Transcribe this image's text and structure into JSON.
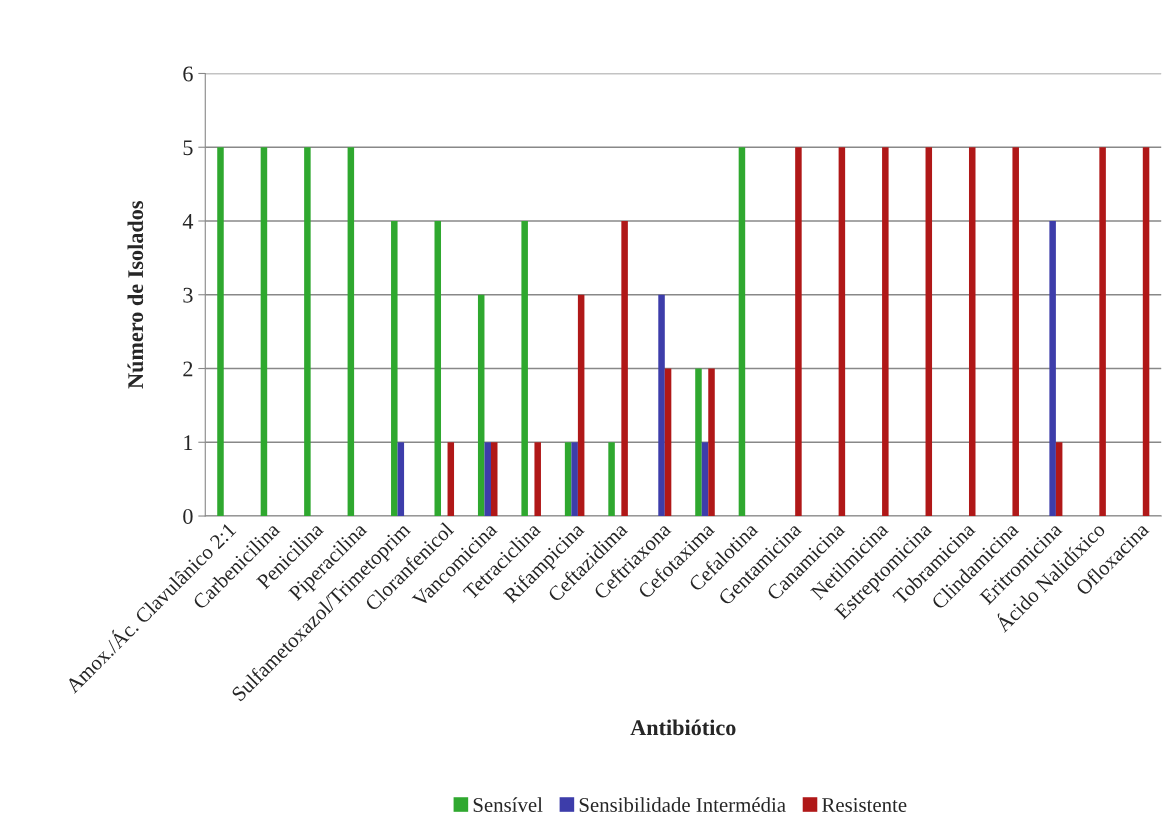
{
  "chart_data": {
    "type": "bar",
    "xlabel": "Antibiótico",
    "ylabel": "Número de Isolados",
    "categories": [
      "Amox./Ác. Clavulânico 2:1",
      "Carbenicilina",
      "Penicilina",
      "Piperacilina",
      "Sulfametoxazol/Trimetoprim",
      "Cloranfenicol",
      "Vancomicina",
      "Tetraciclina",
      "Rifampicina",
      "Ceftazidima",
      "Ceftriaxona",
      "Cefotaxima",
      "Cefalotina",
      "Gentamicina",
      "Canamicina",
      "Netilmicina",
      "Estreptomicina",
      "Tobramicina",
      "Clindamicina",
      "Eritromicina",
      "Ácido Nalidíxico",
      "Ofloxacina"
    ],
    "series": [
      {
        "name": "Sensível",
        "color": "#2fa82f",
        "values": [
          5,
          5,
          5,
          5,
          4,
          4,
          3,
          4,
          1,
          1,
          0,
          2,
          5,
          0,
          0,
          0,
          0,
          0,
          0,
          0,
          0,
          0
        ]
      },
      {
        "name": "Sensibilidade Intermédia",
        "color": "#3d3daa",
        "values": [
          0,
          0,
          0,
          0,
          1,
          0,
          1,
          0,
          1,
          0,
          3,
          1,
          0,
          0,
          0,
          0,
          0,
          0,
          0,
          4,
          0,
          0
        ]
      },
      {
        "name": "Resistente",
        "color": "#b01818",
        "values": [
          0,
          0,
          0,
          0,
          0,
          1,
          1,
          1,
          3,
          4,
          2,
          2,
          0,
          5,
          5,
          5,
          5,
          5,
          5,
          1,
          5,
          5
        ]
      }
    ],
    "ylim": [
      0,
      6
    ],
    "yticks": [
      0,
      1,
      2,
      3,
      4,
      5,
      6
    ],
    "grid": "y",
    "legend": "bottom"
  }
}
